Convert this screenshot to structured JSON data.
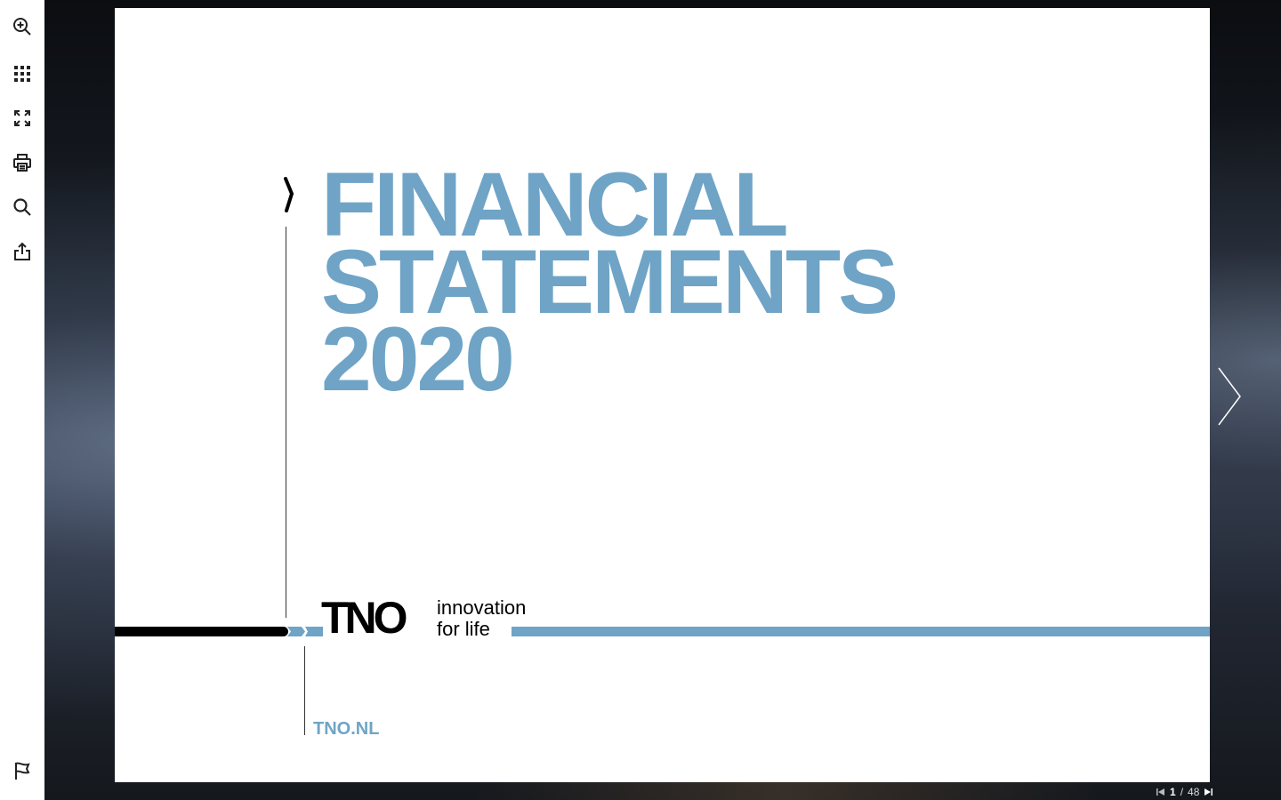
{
  "toolbar": {
    "tools": [
      {
        "name": "zoom-in-icon"
      },
      {
        "name": "thumbnails-icon"
      },
      {
        "name": "fullscreen-icon"
      },
      {
        "name": "print-icon"
      },
      {
        "name": "search-icon"
      },
      {
        "name": "share-icon"
      },
      {
        "name": "flag-icon"
      }
    ]
  },
  "document": {
    "title_line1": "FINANCIAL",
    "title_line2": "STATEMENTS",
    "title_line3": "2020",
    "logo_text": "TNO",
    "tagline_line1": "innovation",
    "tagline_line2": "for life",
    "url": "TNO.NL"
  },
  "pager": {
    "current": "1",
    "separator": "/",
    "total": "48"
  },
  "colors": {
    "accent_blue": "#6fa4c6",
    "black": "#000000"
  }
}
